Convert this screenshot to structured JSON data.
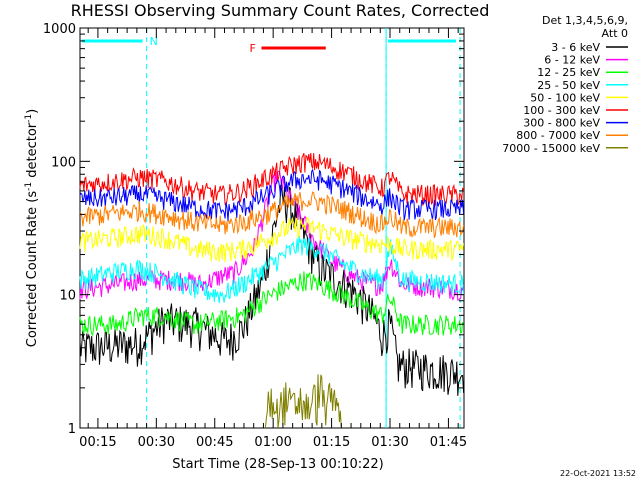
{
  "chart_data": {
    "type": "line",
    "title": "RHESSI Observing Summary Count Rates, Corrected",
    "xlabel": "Start Time (28-Sep-13 00:10:22)",
    "ylabel_main": "Corrected Count Rate (s",
    "ylabel_sup1": "-1",
    "ylabel_mid": " detector",
    "ylabel_sup2": "-1",
    "ylabel_end": ")",
    "yscale": "log",
    "ylim": [
      1,
      1000
    ],
    "xlim_minutes": [
      10.4,
      109
    ],
    "y_ticks": [
      {
        "value": 1,
        "label": "1"
      },
      {
        "value": 10,
        "label": "10"
      },
      {
        "value": 100,
        "label": "100"
      },
      {
        "value": 1000,
        "label": "1000"
      }
    ],
    "x_ticks": [
      {
        "minute": 15,
        "label": "00:15"
      },
      {
        "minute": 30,
        "label": "00:30"
      },
      {
        "minute": 45,
        "label": "00:45"
      },
      {
        "minute": 60,
        "label": "01:00"
      },
      {
        "minute": 75,
        "label": "01:15"
      },
      {
        "minute": 90,
        "label": "01:30"
      },
      {
        "minute": 105,
        "label": "01:45"
      }
    ],
    "legend_header": [
      "Det 1,3,4,5,6,9,",
      "Att 0"
    ],
    "legend_position": "top-right",
    "series": [
      {
        "name": "3 - 6 keV",
        "color": "#000000",
        "points": [
          [
            10.4,
            4
          ],
          [
            25,
            4.3
          ],
          [
            28,
            5
          ],
          [
            32,
            6.5
          ],
          [
            40,
            6
          ],
          [
            48,
            4.5
          ],
          [
            52,
            5.5
          ],
          [
            57,
            12
          ],
          [
            60,
            30
          ],
          [
            62,
            52
          ],
          [
            64,
            50
          ],
          [
            68,
            28
          ],
          [
            72,
            16
          ],
          [
            80,
            11
          ],
          [
            85,
            7.5
          ],
          [
            88,
            5
          ],
          [
            90,
            6
          ],
          [
            92,
            3
          ],
          [
            109,
            2.6
          ]
        ]
      },
      {
        "name": "6 - 12 keV",
        "color": "#ff00ff",
        "points": [
          [
            10.4,
            11
          ],
          [
            20,
            12
          ],
          [
            25,
            13
          ],
          [
            30,
            13
          ],
          [
            36,
            13
          ],
          [
            42,
            12
          ],
          [
            47,
            14
          ],
          [
            50,
            14.5
          ],
          [
            55,
            22
          ],
          [
            59,
            55
          ],
          [
            61,
            80
          ],
          [
            64,
            55
          ],
          [
            70,
            27
          ],
          [
            75,
            18
          ],
          [
            80,
            14
          ],
          [
            85,
            12
          ],
          [
            88,
            12
          ],
          [
            90,
            18
          ],
          [
            93,
            12
          ],
          [
            109,
            11
          ]
        ]
      },
      {
        "name": "12 - 25 keV",
        "color": "#00ff00",
        "points": [
          [
            10.4,
            6
          ],
          [
            20,
            6
          ],
          [
            26,
            7
          ],
          [
            32,
            7
          ],
          [
            40,
            6
          ],
          [
            47,
            6.5
          ],
          [
            52,
            7
          ],
          [
            57,
            9
          ],
          [
            62,
            11
          ],
          [
            68,
            13
          ],
          [
            72,
            12
          ],
          [
            78,
            10
          ],
          [
            84,
            8
          ],
          [
            88,
            7
          ],
          [
            90,
            9.5
          ],
          [
            93,
            6
          ],
          [
            109,
            6
          ]
        ]
      },
      {
        "name": "25 - 50 keV",
        "color": "#00ffff",
        "points": [
          [
            10.4,
            13
          ],
          [
            20,
            15
          ],
          [
            25,
            16
          ],
          [
            32,
            14
          ],
          [
            40,
            11
          ],
          [
            47,
            10
          ],
          [
            52,
            12
          ],
          [
            57,
            15
          ],
          [
            63,
            20
          ],
          [
            67,
            24
          ],
          [
            72,
            22
          ],
          [
            78,
            17
          ],
          [
            84,
            14
          ],
          [
            88,
            13
          ],
          [
            90,
            23
          ],
          [
            93,
            13
          ],
          [
            109,
            12
          ]
        ]
      },
      {
        "name": "50 - 100 keV",
        "color": "#ffff00",
        "points": [
          [
            10.4,
            25
          ],
          [
            20,
            27
          ],
          [
            26,
            29
          ],
          [
            32,
            27
          ],
          [
            40,
            22
          ],
          [
            47,
            21
          ],
          [
            52,
            22
          ],
          [
            58,
            26
          ],
          [
            64,
            32
          ],
          [
            68,
            33
          ],
          [
            72,
            31
          ],
          [
            78,
            27
          ],
          [
            84,
            25
          ],
          [
            88,
            24
          ],
          [
            90,
            24
          ],
          [
            93,
            22
          ],
          [
            109,
            22
          ]
        ]
      },
      {
        "name": "100 - 300 keV",
        "color": "#ff0000",
        "points": [
          [
            10.4,
            66
          ],
          [
            20,
            72
          ],
          [
            26,
            76
          ],
          [
            32,
            72
          ],
          [
            40,
            60
          ],
          [
            47,
            56
          ],
          [
            52,
            60
          ],
          [
            58,
            75
          ],
          [
            64,
            92
          ],
          [
            68,
            100
          ],
          [
            72,
            98
          ],
          [
            78,
            85
          ],
          [
            84,
            70
          ],
          [
            88,
            63
          ],
          [
            90,
            78
          ],
          [
            93,
            57
          ],
          [
            109,
            56
          ]
        ]
      },
      {
        "name": "300 - 800 keV",
        "color": "#0000ff",
        "points": [
          [
            10.4,
            52
          ],
          [
            20,
            54
          ],
          [
            26,
            57
          ],
          [
            32,
            52
          ],
          [
            40,
            45
          ],
          [
            47,
            42
          ],
          [
            52,
            45
          ],
          [
            58,
            55
          ],
          [
            64,
            70
          ],
          [
            68,
            75
          ],
          [
            72,
            73
          ],
          [
            78,
            63
          ],
          [
            84,
            52
          ],
          [
            88,
            47
          ],
          [
            90,
            55
          ],
          [
            93,
            44
          ],
          [
            109,
            44
          ]
        ]
      },
      {
        "name": "800 - 7000 keV",
        "color": "#ff7f00",
        "points": [
          [
            10.4,
            38
          ],
          [
            20,
            41
          ],
          [
            26,
            43
          ],
          [
            32,
            40
          ],
          [
            40,
            35
          ],
          [
            47,
            33
          ],
          [
            52,
            35
          ],
          [
            58,
            40
          ],
          [
            64,
            48
          ],
          [
            68,
            52
          ],
          [
            72,
            50
          ],
          [
            78,
            44
          ],
          [
            84,
            37
          ],
          [
            88,
            34
          ],
          [
            90,
            39
          ],
          [
            93,
            32
          ],
          [
            109,
            32
          ]
        ]
      },
      {
        "name": "7000 - 15000 keV",
        "color": "#808000",
        "points": [
          [
            58,
            1
          ],
          [
            59,
            2.4
          ],
          [
            61,
            1.7
          ],
          [
            63,
            2.3
          ],
          [
            65,
            1.9
          ],
          [
            67,
            2.2
          ],
          [
            69,
            1.8
          ],
          [
            71,
            2.4
          ],
          [
            72,
            2.9
          ],
          [
            73,
            2.1
          ],
          [
            75,
            2.2
          ],
          [
            77,
            1.9
          ],
          [
            77.5,
            1
          ]
        ]
      }
    ],
    "flag_label": "F",
    "flag_color": "#ff0000",
    "flag_range_minutes": [
      57,
      73.5
    ],
    "night_label": "N",
    "night_color": "#00ffff",
    "night_ranges_minutes": [
      [
        10.4,
        27.5
      ],
      [
        89,
        108
      ]
    ],
    "night_boundaries_minutes": [
      27.5,
      89,
      108
    ],
    "timestamp": "22-Oct-2021 13:52"
  }
}
